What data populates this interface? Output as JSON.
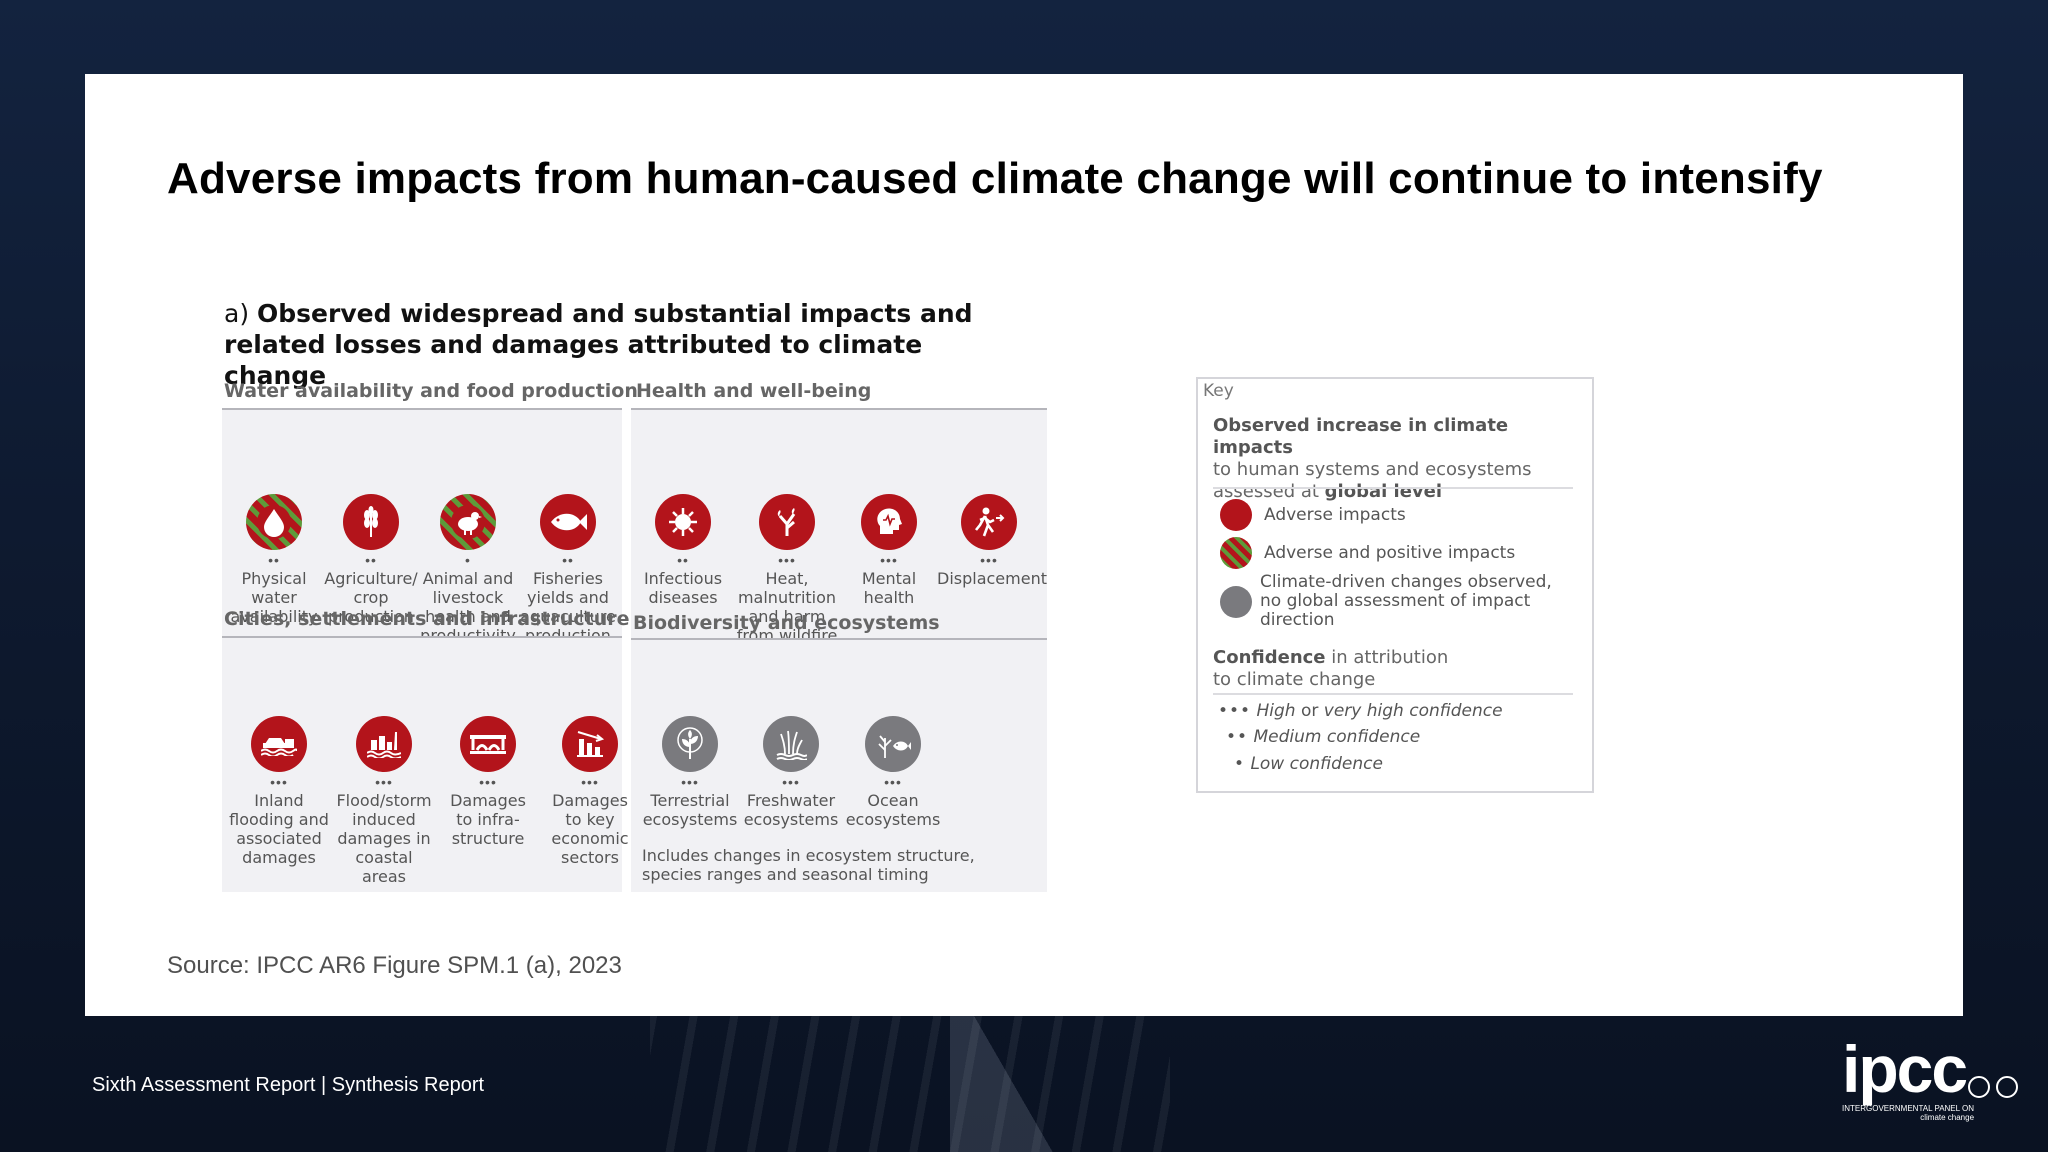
{
  "slide": {
    "title": "Adverse impacts from human-caused climate change will continue to intensify",
    "source": "Source: IPCC AR6 Figure SPM.1 (a), 2023"
  },
  "figure": {
    "prefix": "a)",
    "title_line1": "Observed widespread and substantial impacts and",
    "title_line2": "related losses and damages attributed to climate change"
  },
  "panels": {
    "water": {
      "title": "Water availability and food production",
      "items": [
        {
          "label": [
            "Physical",
            "water",
            "availability"
          ],
          "dots": "••",
          "style": "striped",
          "icon": "water-drop-icon"
        },
        {
          "label": [
            "Agriculture/",
            "crop",
            "production"
          ],
          "dots": "••",
          "style": "solid",
          "icon": "wheat-icon"
        },
        {
          "label": [
            "Animal and",
            "livestock",
            "health and",
            "productivity"
          ],
          "dots": "•",
          "style": "striped",
          "icon": "hen-icon"
        },
        {
          "label": [
            "Fisheries",
            "yields and",
            "aquaculture",
            "production"
          ],
          "dots": "••",
          "style": "solid",
          "icon": "fish-icon"
        }
      ]
    },
    "health": {
      "title": "Health and well-being",
      "items": [
        {
          "label": [
            "Infectious",
            "diseases"
          ],
          "dots": "••",
          "style": "solid",
          "icon": "virus-icon"
        },
        {
          "label": [
            "Heat,",
            "malnutrition",
            "and harm",
            "from wildfire"
          ],
          "dots": "•••",
          "style": "solid",
          "icon": "wildfire-icon"
        },
        {
          "label": [
            "Mental",
            "health"
          ],
          "dots": "•••",
          "style": "solid",
          "icon": "head-icon"
        },
        {
          "label": [
            "Displacement"
          ],
          "dots": "•••",
          "style": "solid",
          "icon": "running-person-icon"
        }
      ]
    },
    "cities": {
      "title": "Cities, settlements and infrastructure",
      "items": [
        {
          "label": [
            "Inland",
            "flooding and",
            "associated",
            "damages"
          ],
          "dots": "•••",
          "style": "solid",
          "icon": "flooded-car-icon"
        },
        {
          "label": [
            "Flood/storm",
            "induced",
            "damages in",
            "coastal areas"
          ],
          "dots": "•••",
          "style": "solid",
          "icon": "coastal-city-icon"
        },
        {
          "label": [
            "Damages",
            "to infra-",
            "structure"
          ],
          "dots": "•••",
          "style": "solid",
          "icon": "bridge-icon"
        },
        {
          "label": [
            "Damages",
            "to key",
            "economic",
            "sectors"
          ],
          "dots": "•••",
          "style": "solid",
          "icon": "falling-chart-icon"
        }
      ]
    },
    "biodiversity": {
      "title": "Biodiversity and ecosystems",
      "items": [
        {
          "label": [
            "Terrestrial",
            "ecosystems"
          ],
          "dots": "•••",
          "style": "grey",
          "icon": "plant-icon"
        },
        {
          "label": [
            "Freshwater",
            "ecosystems"
          ],
          "dots": "•••",
          "style": "grey",
          "icon": "reeds-icon"
        },
        {
          "label": [
            "Ocean",
            "ecosystems"
          ],
          "dots": "•••",
          "style": "grey",
          "icon": "coral-fish-icon"
        }
      ],
      "note_line1": "Includes changes in ecosystem structure,",
      "note_line2": "species ranges and seasonal timing"
    }
  },
  "key": {
    "title": "Key",
    "head_bold": "Observed increase in climate impacts",
    "head_line2": "to human systems and ecosystems",
    "head_line3_plain": "assessed at ",
    "head_line3_bold": "global level",
    "adverse": "Adverse impacts",
    "adverse_positive": "Adverse and positive impacts",
    "climate_driven_line1": "Climate-driven changes observed,",
    "climate_driven_line2": "no global assessment of impact direction",
    "conf_bold": "Confidence",
    "conf_rest": " in attribution",
    "conf_line2": "to climate change",
    "high_dots": "•••",
    "high_em": "High",
    "high_rest": " or ",
    "high_em2": "very high confidence",
    "medium_dots": "••",
    "medium": "Medium confidence",
    "low_dots": "•",
    "low": "Low confidence"
  },
  "colors": {
    "adverse_red": "#b3141b",
    "positive_green": "#5e9a3a",
    "neutral_grey": "#7a7a7e"
  },
  "footer": {
    "report": "Sixth Assessment Report | Synthesis Report",
    "logo": "ipcc",
    "logo_sub1": "INTERGOVERNMENTAL PANEL ON",
    "logo_sub2": "climate change"
  }
}
